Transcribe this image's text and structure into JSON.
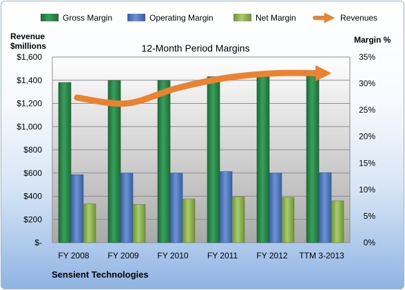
{
  "chart_data": {
    "type": "bar",
    "title": "12-Month Period Margins",
    "company": "Sensient Technologies",
    "categories": [
      "FY 2008",
      "FY 2009",
      "FY 2010",
      "FY 2011",
      "FY 2012",
      "TTM 3-2013"
    ],
    "left_axis": {
      "label_line1": "Revenue",
      "label_line2": "$millions",
      "ylim": [
        0,
        1600
      ],
      "tick_values": [
        0,
        200,
        400,
        600,
        800,
        1000,
        1200,
        1400,
        1600
      ],
      "tick_labels": [
        "$-",
        "$200",
        "$400",
        "$600",
        "$800",
        "$1,000",
        "$1,200",
        "$1,400",
        "$1,600"
      ]
    },
    "right_axis": {
      "label": "Margin %",
      "ylim": [
        0,
        35
      ],
      "tick_values": [
        0,
        5,
        10,
        15,
        20,
        25,
        30,
        35
      ],
      "tick_labels": [
        "0%",
        "5%",
        "10%",
        "15%",
        "20%",
        "25%",
        "30%",
        "35%"
      ]
    },
    "series": [
      {
        "name": "Gross Margin",
        "axis": "right",
        "kind": "bar",
        "color": "#2e8b4e",
        "values": [
          30.2,
          30.6,
          30.6,
          31.3,
          31.8,
          31.9
        ]
      },
      {
        "name": "Operating Margin",
        "axis": "right",
        "kind": "bar",
        "color": "#4f7ac4",
        "values": [
          12.8,
          13.1,
          13.1,
          13.4,
          13.1,
          13.2
        ]
      },
      {
        "name": "Net Margin",
        "axis": "right",
        "kind": "bar",
        "color": "#8eb552",
        "values": [
          7.3,
          7.2,
          8.2,
          8.6,
          8.5,
          7.9
        ]
      },
      {
        "name": "Revenues",
        "axis": "left",
        "kind": "line",
        "color": "#e98231",
        "values": [
          1250,
          1200,
          1330,
          1420,
          1460,
          1460
        ]
      }
    ],
    "grid": true,
    "legend": "top"
  }
}
